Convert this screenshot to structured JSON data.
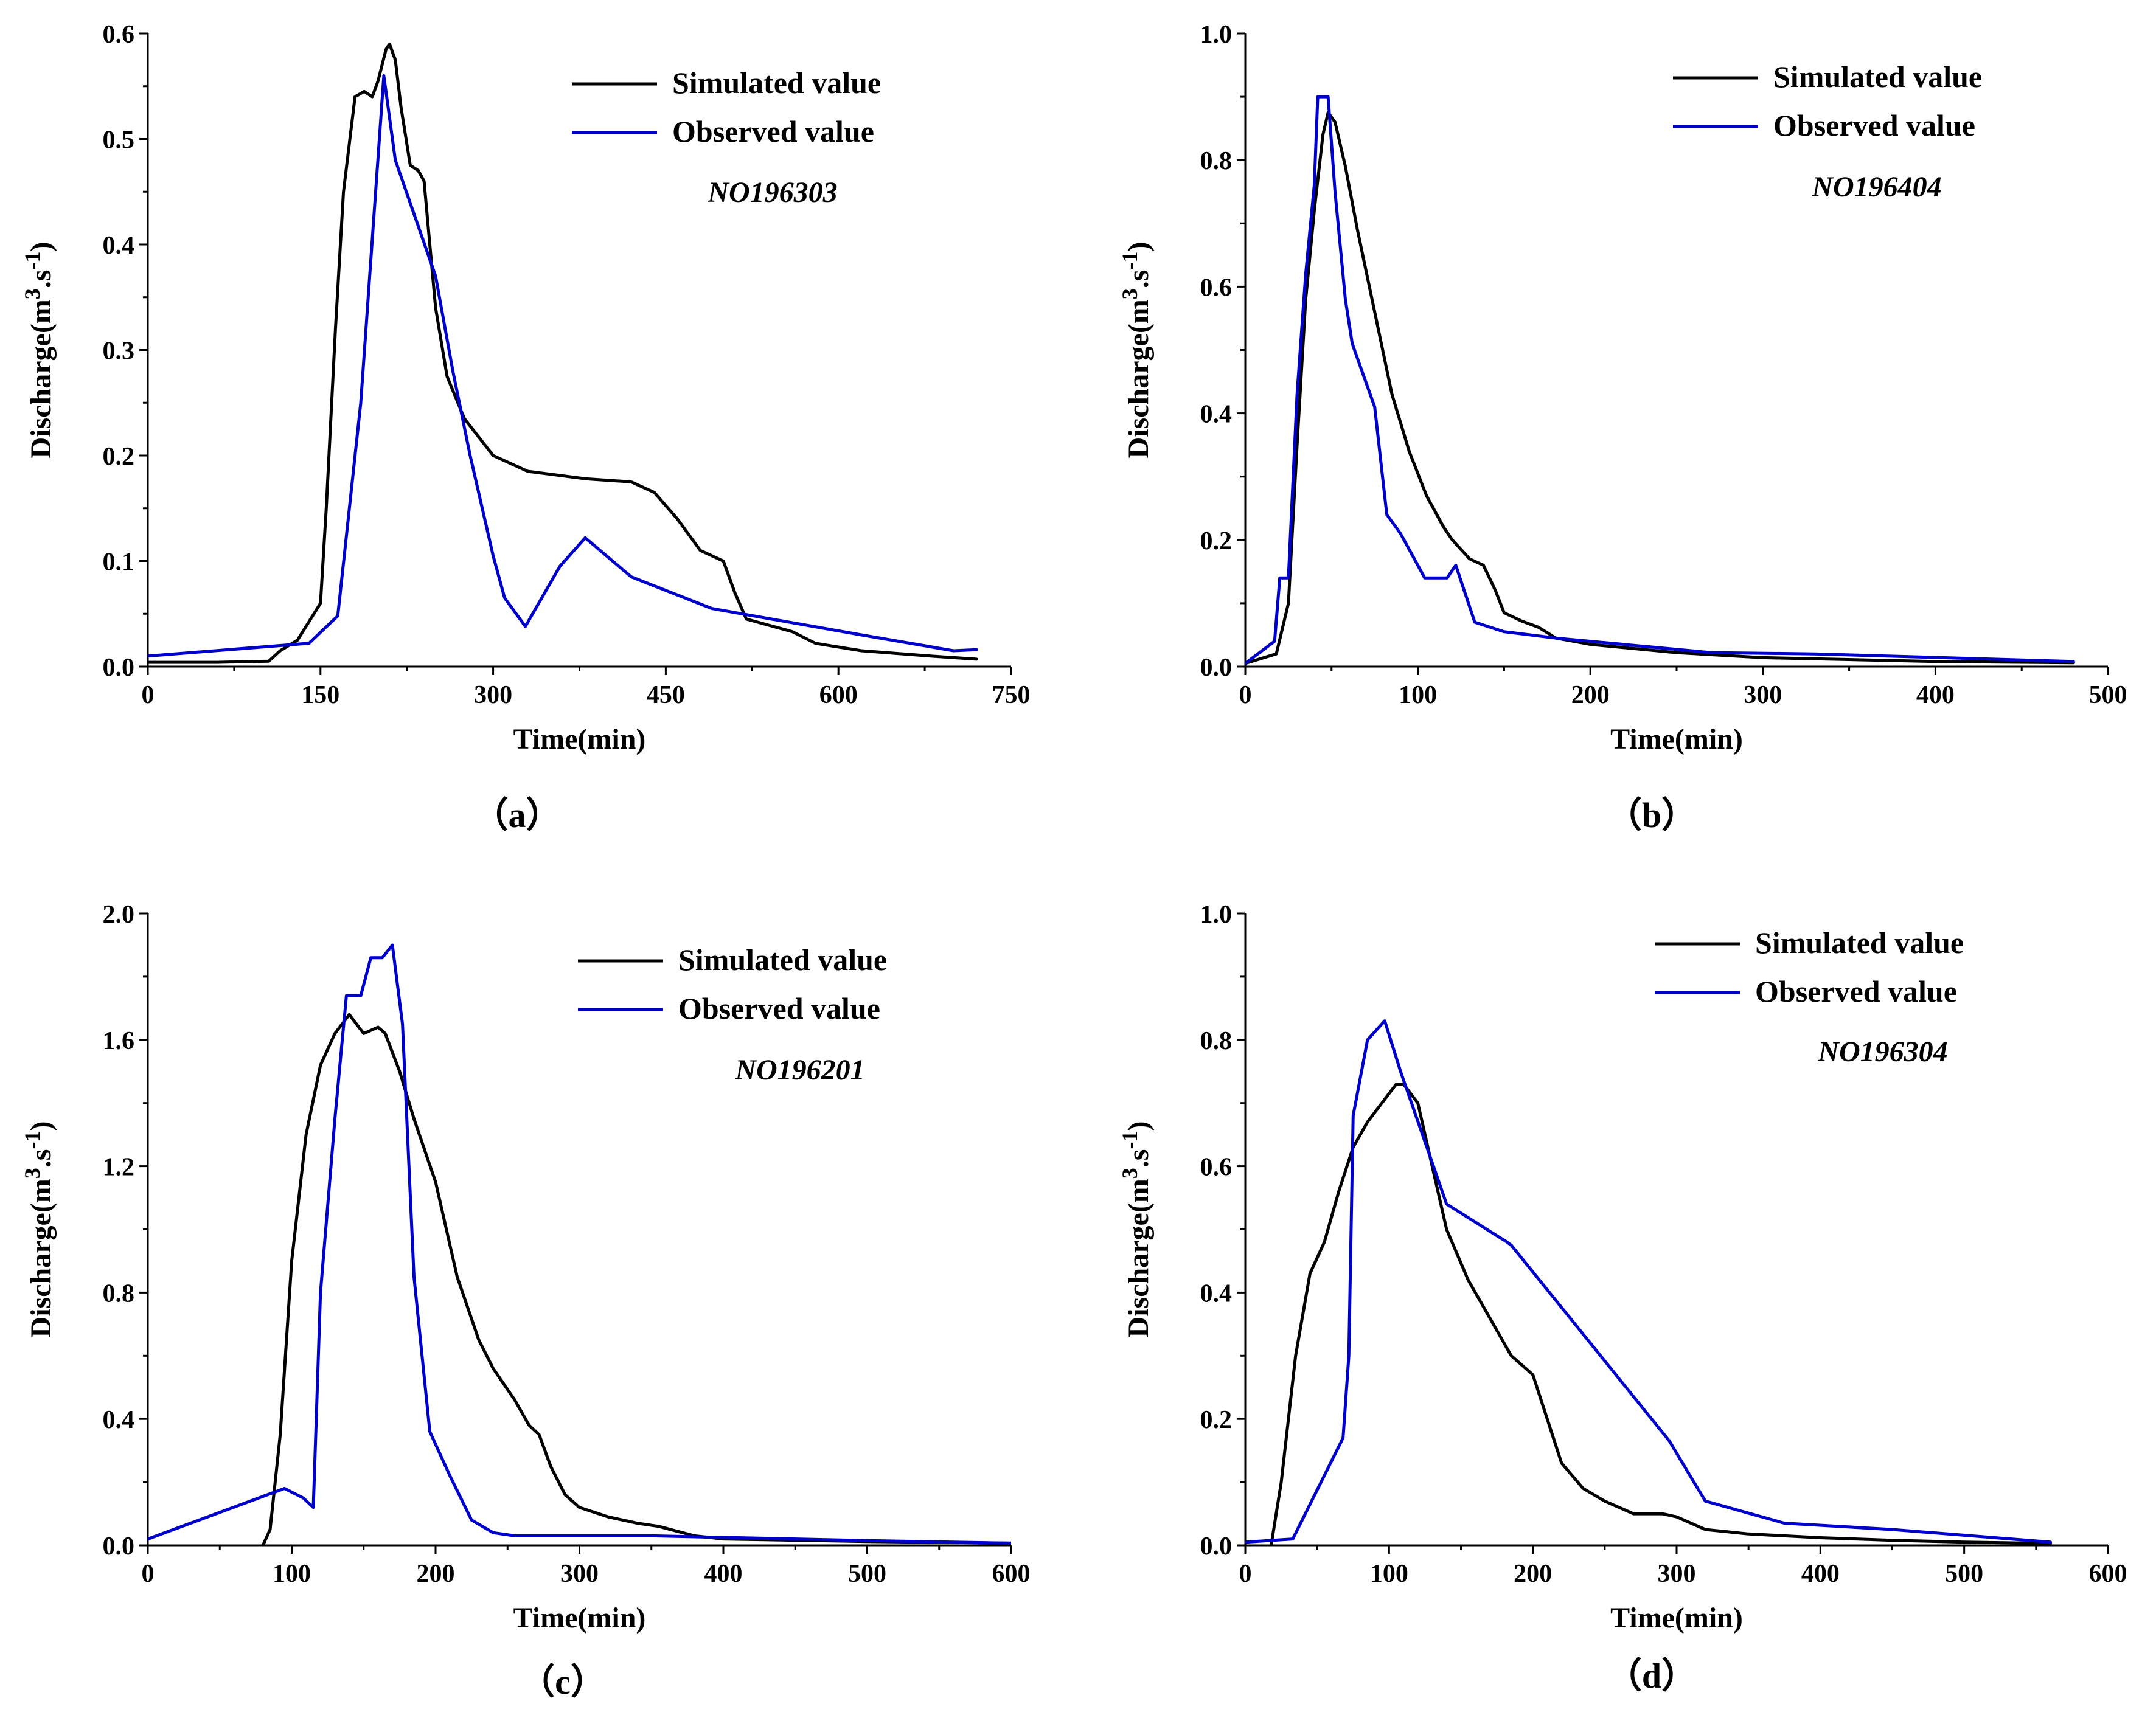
{
  "chart_data": [
    {
      "type": "line",
      "panel_label": "（a）",
      "annotation": "NO196303",
      "xlabel": "Time(min)",
      "ylabel": "Discharge(m3.s-1)",
      "xlim": [
        0,
        750
      ],
      "ylim": [
        0,
        0.6
      ],
      "xticks": [
        0,
        150,
        300,
        450,
        600,
        750
      ],
      "yticks": [
        0.0,
        0.1,
        0.2,
        0.3,
        0.4,
        0.5,
        0.6
      ],
      "xtick_labels": [
        "0",
        "150",
        "300",
        "450",
        "600",
        "750"
      ],
      "ytick_labels": [
        "0.0",
        "0.1",
        "0.2",
        "0.3",
        "0.4",
        "0.5",
        "0.6"
      ],
      "legend_position": "top-right",
      "series": [
        {
          "name": "Simulated value",
          "color": "#000000",
          "x": [
            0,
            60,
            105,
            115,
            130,
            150,
            155,
            163,
            170,
            180,
            188,
            195,
            200,
            207,
            210,
            215,
            220,
            228,
            235,
            240,
            245,
            250,
            260,
            275,
            300,
            330,
            380,
            420,
            440,
            460,
            480,
            500,
            510,
            520,
            560,
            580,
            620,
            680,
            720
          ],
          "y": [
            0.004,
            0.004,
            0.005,
            0.015,
            0.025,
            0.06,
            0.15,
            0.32,
            0.45,
            0.54,
            0.545,
            0.54,
            0.555,
            0.585,
            0.59,
            0.575,
            0.53,
            0.475,
            0.47,
            0.46,
            0.4,
            0.34,
            0.275,
            0.235,
            0.2,
            0.185,
            0.178,
            0.175,
            0.165,
            0.14,
            0.11,
            0.1,
            0.07,
            0.045,
            0.033,
            0.022,
            0.015,
            0.01,
            0.007
          ]
        },
        {
          "name": "Observed value",
          "color": "#0000CC",
          "x": [
            0,
            140,
            165,
            185,
            205,
            215,
            250,
            265,
            280,
            300,
            310,
            328,
            358,
            380,
            420,
            490,
            620,
            700,
            720
          ],
          "y": [
            0.01,
            0.022,
            0.048,
            0.25,
            0.56,
            0.48,
            0.37,
            0.28,
            0.2,
            0.105,
            0.065,
            0.038,
            0.095,
            0.122,
            0.085,
            0.055,
            0.03,
            0.015,
            0.016
          ]
        }
      ]
    },
    {
      "type": "line",
      "panel_label": "（b）",
      "annotation": "NO196404",
      "xlabel": "Time(min)",
      "ylabel": "Discharge(m3.s-1)",
      "xlim": [
        0,
        500
      ],
      "ylim": [
        0,
        1.0
      ],
      "xticks": [
        0,
        100,
        200,
        300,
        400,
        500
      ],
      "yticks": [
        0.0,
        0.2,
        0.4,
        0.6,
        0.8,
        1.0
      ],
      "xtick_labels": [
        "0",
        "100",
        "200",
        "300",
        "400",
        "500"
      ],
      "ytick_labels": [
        "0.0",
        "0.2",
        "0.4",
        "0.6",
        "0.8",
        "1.0"
      ],
      "legend_position": "top-right",
      "series": [
        {
          "name": "Simulated value",
          "color": "#000000",
          "x": [
            0,
            18,
            25,
            30,
            35,
            40,
            45,
            48,
            52,
            58,
            65,
            75,
            85,
            95,
            105,
            115,
            120,
            130,
            138,
            145,
            150,
            160,
            170,
            180,
            200,
            250,
            300,
            400,
            480
          ],
          "y": [
            0.005,
            0.02,
            0.1,
            0.35,
            0.58,
            0.72,
            0.84,
            0.875,
            0.86,
            0.79,
            0.69,
            0.56,
            0.43,
            0.34,
            0.27,
            0.22,
            0.2,
            0.17,
            0.16,
            0.12,
            0.085,
            0.072,
            0.062,
            0.045,
            0.035,
            0.022,
            0.014,
            0.008,
            0.006
          ]
        },
        {
          "name": "Observed value",
          "color": "#0000CC",
          "x": [
            0,
            17,
            20,
            25,
            30,
            35,
            40,
            42,
            48,
            52,
            58,
            62,
            75,
            82,
            90,
            98,
            104,
            110,
            117,
            122,
            133,
            150,
            180,
            270,
            330,
            480
          ],
          "y": [
            0.005,
            0.04,
            0.14,
            0.14,
            0.43,
            0.62,
            0.76,
            0.9,
            0.9,
            0.75,
            0.58,
            0.51,
            0.41,
            0.24,
            0.21,
            0.17,
            0.14,
            0.14,
            0.14,
            0.16,
            0.07,
            0.055,
            0.045,
            0.022,
            0.02,
            0.008
          ]
        }
      ]
    },
    {
      "type": "line",
      "panel_label": "（c）",
      "annotation": "NO196201",
      "xlabel": "Time(min)",
      "ylabel": "Discharge(m3.s-1)",
      "xlim": [
        0,
        600
      ],
      "ylim": [
        0,
        2.0
      ],
      "xticks": [
        0,
        100,
        200,
        300,
        400,
        500,
        600
      ],
      "yticks": [
        0.0,
        0.4,
        0.8,
        1.2,
        1.6,
        2.0
      ],
      "xtick_labels": [
        "0",
        "100",
        "200",
        "300",
        "400",
        "500",
        "600"
      ],
      "ytick_labels": [
        "0.0",
        "0.4",
        "0.8",
        "1.2",
        "1.6",
        "2.0"
      ],
      "legend_position": "top-right",
      "series": [
        {
          "name": "Simulated value",
          "color": "#000000",
          "x": [
            80,
            85,
            92,
            100,
            110,
            120,
            130,
            140,
            145,
            150,
            160,
            165,
            175,
            185,
            200,
            215,
            230,
            240,
            255,
            265,
            272,
            280,
            290,
            300,
            320,
            340,
            355,
            380,
            400,
            500,
            600
          ],
          "y": [
            0.0,
            0.05,
            0.35,
            0.9,
            1.3,
            1.52,
            1.62,
            1.68,
            1.65,
            1.62,
            1.64,
            1.62,
            1.5,
            1.35,
            1.15,
            0.85,
            0.65,
            0.56,
            0.46,
            0.38,
            0.35,
            0.25,
            0.16,
            0.12,
            0.09,
            0.07,
            0.06,
            0.03,
            0.02,
            0.012,
            0.007
          ]
        },
        {
          "name": "Observed value",
          "color": "#0000CC",
          "x": [
            0,
            95,
            108,
            115,
            120,
            130,
            138,
            148,
            155,
            163,
            170,
            177,
            185,
            196,
            210,
            225,
            240,
            255,
            300,
            350,
            400,
            500,
            600
          ],
          "y": [
            0.02,
            0.18,
            0.15,
            0.12,
            0.8,
            1.35,
            1.74,
            1.74,
            1.86,
            1.86,
            1.9,
            1.65,
            0.85,
            0.36,
            0.22,
            0.08,
            0.04,
            0.03,
            0.03,
            0.03,
            0.025,
            0.015,
            0.007
          ]
        }
      ]
    },
    {
      "type": "line",
      "panel_label": "（d）",
      "annotation": "NO196304",
      "xlabel": "Time(min)",
      "ylabel": "Discharge(m3.s-1)",
      "xlim": [
        0,
        600
      ],
      "ylim": [
        0,
        1.0
      ],
      "xticks": [
        0,
        100,
        200,
        300,
        400,
        500,
        600
      ],
      "yticks": [
        0.0,
        0.2,
        0.4,
        0.6,
        0.8,
        1.0
      ],
      "xtick_labels": [
        "0",
        "100",
        "200",
        "300",
        "400",
        "500",
        "600"
      ],
      "ytick_labels": [
        "0.0",
        "0.2",
        "0.4",
        "0.6",
        "0.8",
        "1.0"
      ],
      "legend_position": "top-right",
      "series": [
        {
          "name": "Simulated value",
          "color": "#000000",
          "x": [
            18,
            25,
            35,
            45,
            55,
            65,
            75,
            85,
            95,
            105,
            110,
            120,
            130,
            140,
            155,
            170,
            185,
            200,
            210,
            220,
            235,
            250,
            270,
            290,
            300,
            320,
            350,
            400,
            450,
            500,
            560
          ],
          "y": [
            0.0,
            0.1,
            0.3,
            0.43,
            0.48,
            0.56,
            0.63,
            0.67,
            0.7,
            0.73,
            0.73,
            0.7,
            0.6,
            0.5,
            0.42,
            0.36,
            0.3,
            0.27,
            0.2,
            0.13,
            0.09,
            0.07,
            0.05,
            0.05,
            0.045,
            0.025,
            0.018,
            0.012,
            0.008,
            0.005,
            0.003
          ]
        },
        {
          "name": "Observed value",
          "color": "#0000CC",
          "x": [
            0,
            33,
            68,
            72,
            75,
            85,
            97,
            108,
            140,
            182,
            185,
            240,
            295,
            312,
            320,
            375,
            450,
            560
          ],
          "y": [
            0.005,
            0.01,
            0.17,
            0.3,
            0.68,
            0.8,
            0.83,
            0.75,
            0.54,
            0.48,
            0.475,
            0.32,
            0.165,
            0.1,
            0.07,
            0.035,
            0.025,
            0.005
          ]
        }
      ]
    }
  ]
}
